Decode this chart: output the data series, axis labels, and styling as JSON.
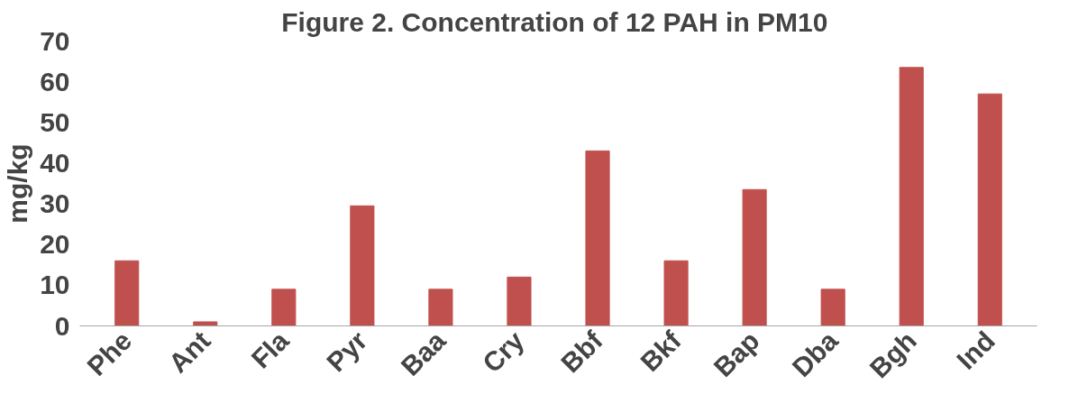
{
  "chart_data": {
    "type": "bar",
    "title": "Figure 2.  Concentration of 12 PAH in PM10",
    "ylabel": "mg/kg",
    "categories": [
      "Phe",
      "Ant",
      "Fla",
      "Pyr",
      "Baa",
      "Cry",
      "Bbf",
      "Bkf",
      "Bap",
      "Dba",
      "Bgh",
      "Ind"
    ],
    "values": [
      16,
      1,
      9,
      29.5,
      9,
      12,
      43,
      16,
      33.5,
      9,
      63.5,
      57
    ],
    "color": "#c0504d",
    "ylim": [
      0,
      70
    ],
    "yticks": [
      0,
      10,
      20,
      30,
      40,
      50,
      60,
      70
    ],
    "grid": false
  }
}
